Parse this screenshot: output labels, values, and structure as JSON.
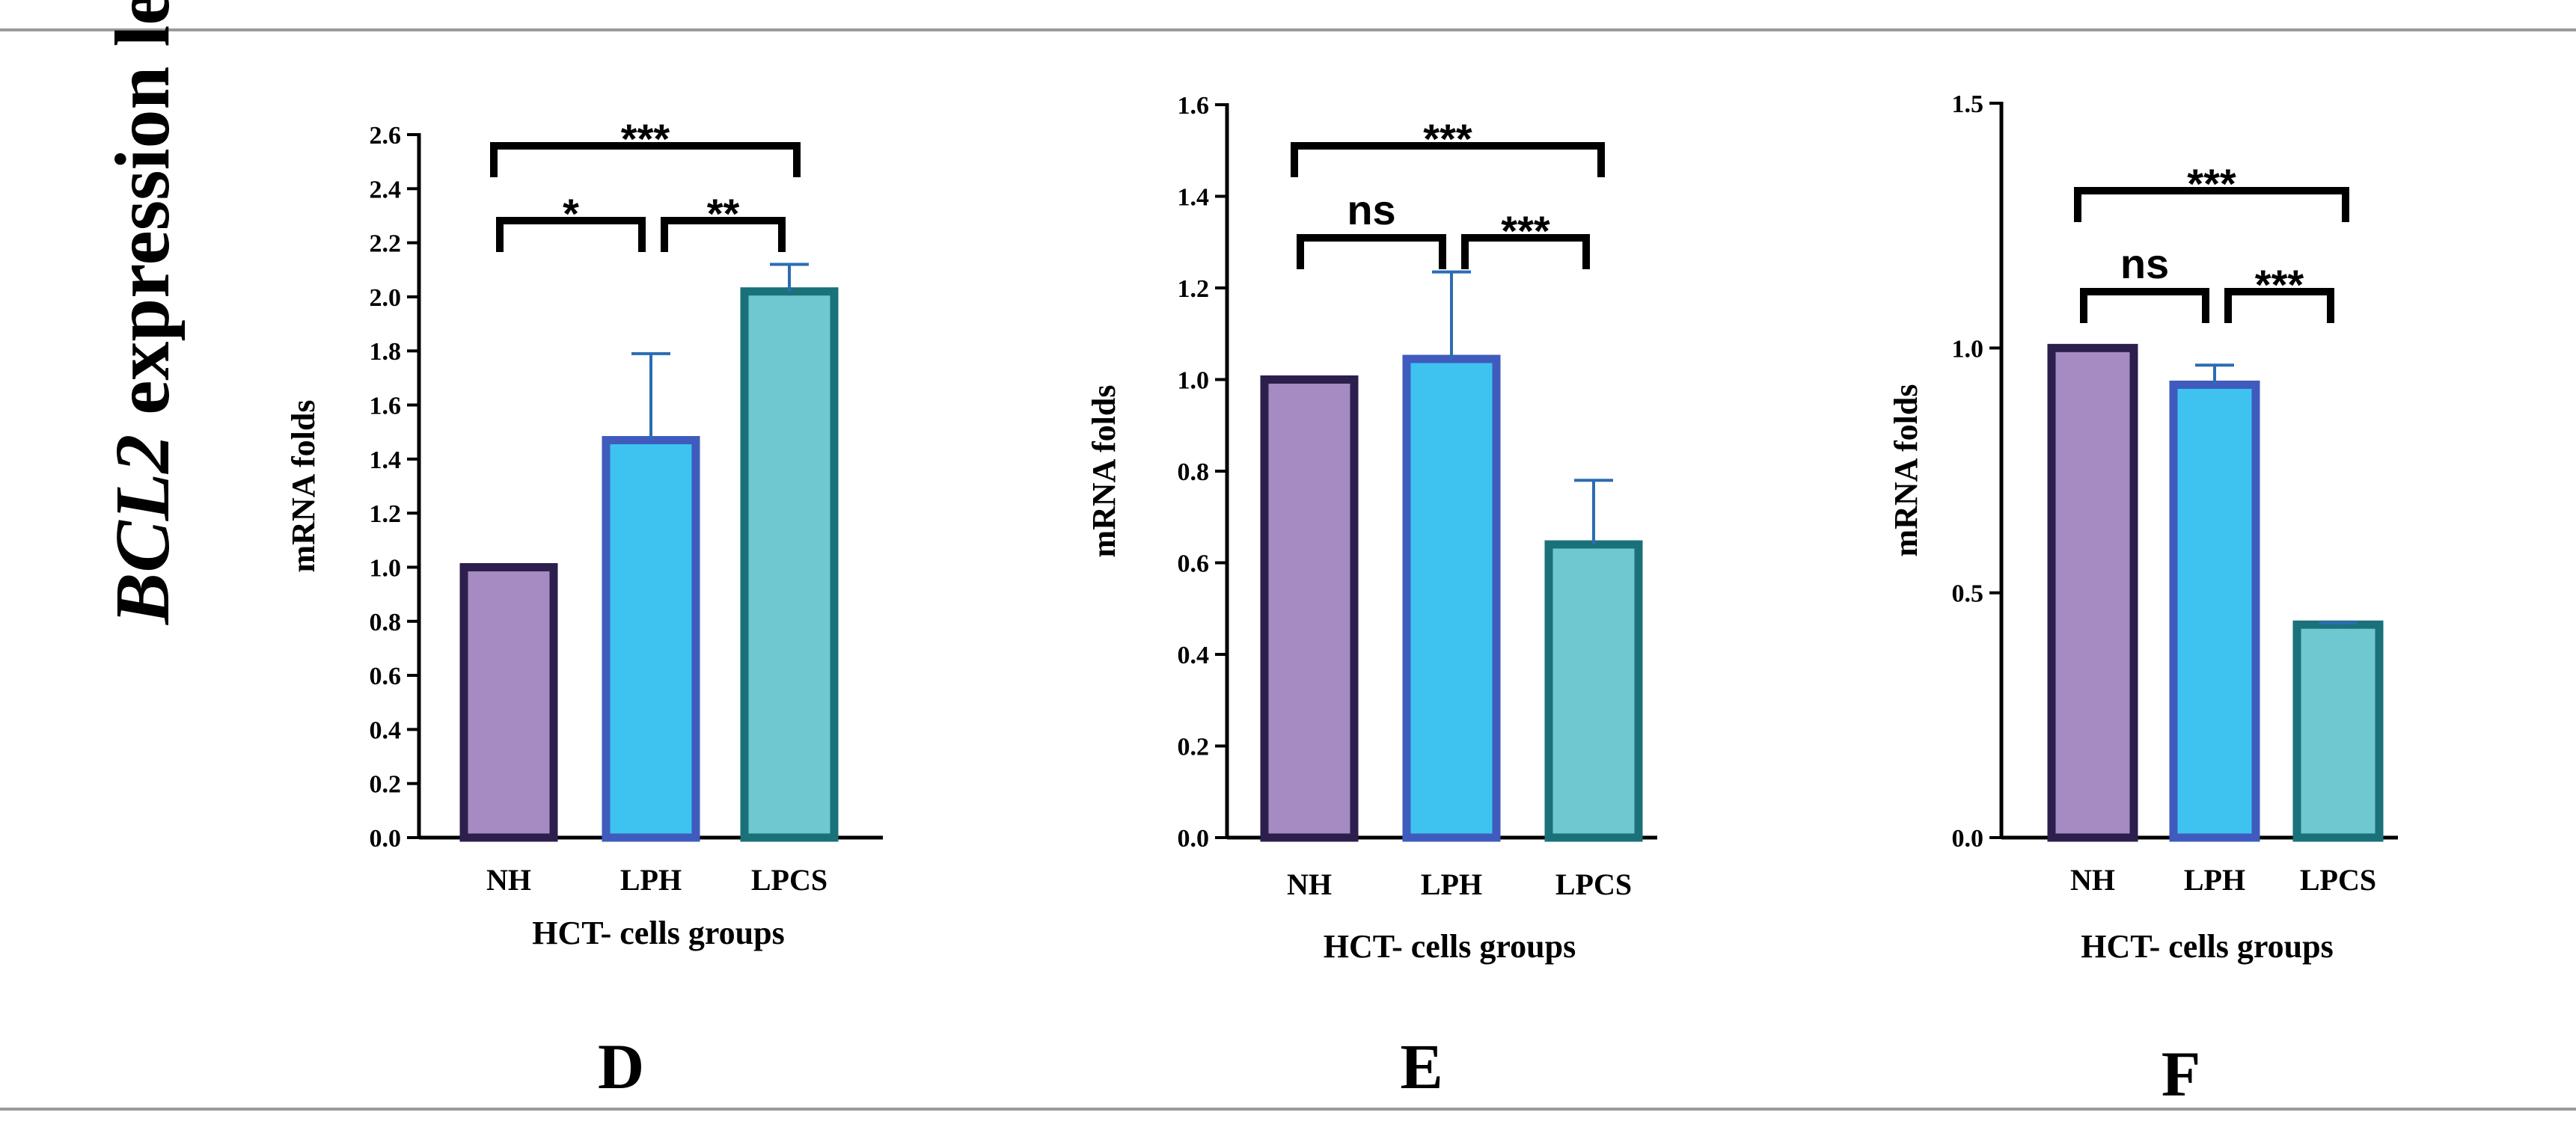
{
  "page_title": {
    "gene": "BCL2",
    "rest": " expression levels"
  },
  "chart_data": [
    {
      "type": "bar",
      "panel": "D",
      "categories": [
        "NH",
        "LPH",
        "LPCS"
      ],
      "values": [
        1.0,
        1.47,
        2.02
      ],
      "errors": [
        0.0,
        0.32,
        0.1
      ],
      "ylabel": "mRNA folds",
      "xlabel": "HCT-  cells groups",
      "ylim": [
        0,
        2.6
      ],
      "yticks": [
        0.0,
        0.2,
        0.4,
        0.6,
        0.8,
        1.0,
        1.2,
        1.4,
        1.6,
        1.8,
        2.0,
        2.2,
        2.4,
        2.6
      ],
      "ytick_labels": [
        "0.0",
        "0.2",
        "0.4",
        "0.6",
        "0.8",
        "1.0",
        "1.2",
        "1.4",
        "1.6",
        "1.8",
        "2.0",
        "2.2",
        "2.4",
        "2.6"
      ],
      "comparisons": [
        {
          "from": "NH",
          "to": "LPH",
          "label": "*"
        },
        {
          "from": "LPH",
          "to": "LPCS",
          "label": "**"
        },
        {
          "from": "NH",
          "to": "LPCS",
          "label": "***"
        }
      ]
    },
    {
      "type": "bar",
      "panel": "E",
      "categories": [
        "NH",
        "LPH",
        "LPCS"
      ],
      "values": [
        1.0,
        1.045,
        0.64
      ],
      "errors": [
        0.0,
        0.19,
        0.14
      ],
      "ylabel": "mRNA folds",
      "xlabel": "HCT-  cells groups",
      "ylim": [
        0,
        1.6
      ],
      "yticks": [
        0.0,
        0.2,
        0.4,
        0.6,
        0.8,
        1.0,
        1.2,
        1.4,
        1.6
      ],
      "ytick_labels": [
        "0.0",
        "0.2",
        "0.4",
        "0.6",
        "0.8",
        "1.0",
        "1.2",
        "1.4",
        "1.6"
      ],
      "comparisons": [
        {
          "from": "NH",
          "to": "LPH",
          "label": "ns"
        },
        {
          "from": "LPH",
          "to": "LPCS",
          "label": "***"
        },
        {
          "from": "NH",
          "to": "LPCS",
          "label": "***"
        }
      ]
    },
    {
      "type": "bar",
      "panel": "F",
      "categories": [
        "NH",
        "LPH",
        "LPCS"
      ],
      "values": [
        1.0,
        0.925,
        0.435
      ],
      "errors": [
        0.0,
        0.04,
        0.003
      ],
      "ylabel": "mRNA folds",
      "xlabel": "HCT-  cells groups",
      "ylim": [
        0,
        1.5
      ],
      "yticks": [
        0.0,
        0.5,
        1.0,
        1.5
      ],
      "ytick_labels": [
        "0.0",
        "0.5",
        "1.0",
        "1.5"
      ],
      "comparisons": [
        {
          "from": "NH",
          "to": "LPH",
          "label": "ns"
        },
        {
          "from": "LPH",
          "to": "LPCS",
          "label": "***"
        },
        {
          "from": "NH",
          "to": "LPCS",
          "label": "***"
        }
      ]
    }
  ],
  "colors": {
    "bar_fills": [
      "#a58bc2",
      "#3ec3f0",
      "#6fc7cf"
    ],
    "bar_edges": [
      "#2c1f4e",
      "#3f5bbd",
      "#1a7179"
    ],
    "error_bar": "#2b6cb3",
    "rule": "#9a9a9a"
  }
}
